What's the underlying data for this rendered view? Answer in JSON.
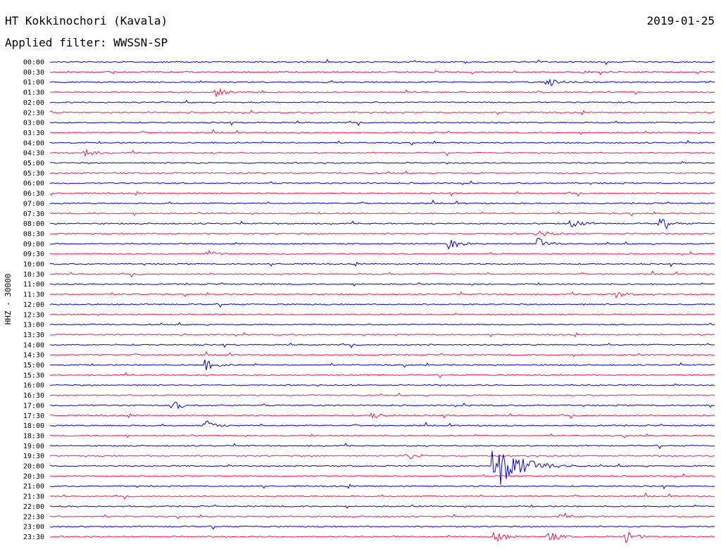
{
  "colors": {
    "blue": "#0000ee",
    "red": "#ff1744",
    "text": "#000000",
    "background": "#ffffff"
  },
  "chart_data": {
    "type": "line",
    "title": "HT Kokkinochori (Kavala)",
    "subtitle": "Applied filter: WWSSN-SP",
    "date": "2019-01-25",
    "ylabel": "HHZ - 30000",
    "grid": false,
    "rows": [
      "00:00",
      "00:30",
      "01:00",
      "01:30",
      "02:00",
      "02:30",
      "03:00",
      "03:30",
      "04:00",
      "04:30",
      "05:00",
      "05:30",
      "06:00",
      "06:30",
      "07:00",
      "07:30",
      "08:00",
      "08:30",
      "09:00",
      "09:30",
      "10:00",
      "10:30",
      "11:00",
      "11:30",
      "12:00",
      "12:30",
      "13:00",
      "13:30",
      "14:00",
      "14:30",
      "15:00",
      "15:30",
      "16:00",
      "16:30",
      "17:00",
      "17:30",
      "18:00",
      "18:30",
      "19:00",
      "19:30",
      "20:00",
      "20:30",
      "21:00",
      "21:30",
      "22:00",
      "22:30",
      "23:00",
      "23:30"
    ],
    "trace_colors": [
      "blue",
      "red"
    ],
    "events": [
      {
        "row": "00:30",
        "minute": 24,
        "amplitude": 2
      },
      {
        "row": "01:00",
        "minute": 22.5,
        "amplitude": 6
      },
      {
        "row": "01:30",
        "minute": 7.5,
        "amplitude": 6
      },
      {
        "row": "04:30",
        "minute": 1.5,
        "amplitude": 6
      },
      {
        "row": "08:00",
        "minute": 23.5,
        "amplitude": 8
      },
      {
        "row": "08:00",
        "minute": 27.5,
        "amplitude": 8
      },
      {
        "row": "08:30",
        "minute": 22,
        "amplitude": 7
      },
      {
        "row": "09:00",
        "minute": 18,
        "amplitude": 8
      },
      {
        "row": "09:00",
        "minute": 22,
        "amplitude": 9
      },
      {
        "row": "09:30",
        "minute": 7,
        "amplitude": 6
      },
      {
        "row": "11:30",
        "minute": 25.5,
        "amplitude": 6
      },
      {
        "row": "15:00",
        "minute": 7,
        "amplitude": 8
      },
      {
        "row": "17:00",
        "minute": 5.5,
        "amplitude": 8
      },
      {
        "row": "17:30",
        "minute": 14.5,
        "amplitude": 6
      },
      {
        "row": "18:00",
        "minute": 7,
        "amplitude": 8
      },
      {
        "row": "19:30",
        "minute": 16,
        "amplitude": 7
      },
      {
        "row": "20:00",
        "minute": 20,
        "amplitude": 42
      },
      {
        "row": "22:30",
        "minute": 23,
        "amplitude": 3
      },
      {
        "row": "23:30",
        "minute": 20,
        "amplitude": 11
      },
      {
        "row": "23:30",
        "minute": 22.5,
        "amplitude": 9
      },
      {
        "row": "23:30",
        "minute": 26,
        "amplitude": 9
      }
    ]
  }
}
